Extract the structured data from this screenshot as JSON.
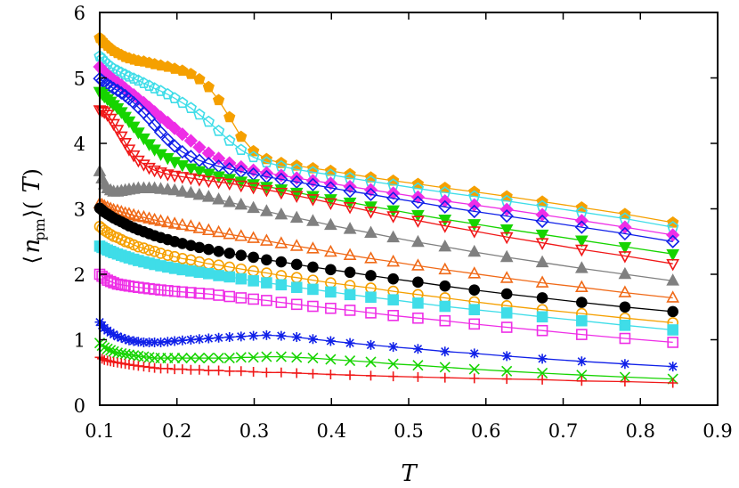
{
  "chart_data": {
    "type": "line",
    "title": "",
    "xlabel": "T",
    "ylabel": "⟨n_pm⟩(T)",
    "xlim": [
      0.1,
      0.9
    ],
    "ylim": [
      0,
      6
    ],
    "xticks": [
      "0.1",
      "0.2",
      "0.3",
      "0.4",
      "0.5",
      "0.6",
      "0.7",
      "0.8",
      "0.9"
    ],
    "yticks": [
      "0",
      "1",
      "2",
      "3",
      "4",
      "5",
      "6"
    ],
    "grid": false,
    "legend": "none",
    "x": [
      0.1,
      0.103,
      0.106,
      0.11,
      0.114,
      0.118,
      0.123,
      0.128,
      0.133,
      0.138,
      0.144,
      0.15,
      0.157,
      0.164,
      0.171,
      0.179,
      0.188,
      0.197,
      0.207,
      0.218,
      0.229,
      0.241,
      0.254,
      0.268,
      0.283,
      0.299,
      0.316,
      0.335,
      0.355,
      0.376,
      0.399,
      0.424,
      0.451,
      0.48,
      0.512,
      0.547,
      0.585,
      0.627,
      0.673,
      0.724,
      0.78,
      0.842
    ],
    "series": [
      {
        "marker": "filled-pentagon",
        "color": "#f5a000",
        "values": [
          5.61,
          5.57,
          5.53,
          5.49,
          5.45,
          5.41,
          5.38,
          5.35,
          5.32,
          5.3,
          5.28,
          5.26,
          5.25,
          5.23,
          5.21,
          5.19,
          5.17,
          5.14,
          5.11,
          5.06,
          4.98,
          4.86,
          4.66,
          4.4,
          4.1,
          3.88,
          3.76,
          3.7,
          3.66,
          3.62,
          3.58,
          3.53,
          3.48,
          3.43,
          3.38,
          3.32,
          3.26,
          3.19,
          3.11,
          3.02,
          2.92,
          2.79
        ]
      },
      {
        "marker": "open-pentagon",
        "color": "#3fdde8",
        "values": [
          5.33,
          5.29,
          5.25,
          5.21,
          5.17,
          5.14,
          5.11,
          5.08,
          5.05,
          5.02,
          4.99,
          4.96,
          4.92,
          4.88,
          4.84,
          4.8,
          4.75,
          4.69,
          4.62,
          4.54,
          4.44,
          4.33,
          4.19,
          4.04,
          3.9,
          3.79,
          3.71,
          3.65,
          3.6,
          3.56,
          3.52,
          3.47,
          3.42,
          3.37,
          3.31,
          3.25,
          3.19,
          3.12,
          3.04,
          2.95,
          2.85,
          2.72
        ]
      },
      {
        "marker": "filled-diamond",
        "color": "#ee2ee6",
        "values": [
          5.17,
          5.13,
          5.09,
          5.05,
          5.01,
          4.97,
          4.93,
          4.89,
          4.84,
          4.79,
          4.74,
          4.68,
          4.62,
          4.55,
          4.48,
          4.4,
          4.32,
          4.23,
          4.14,
          4.04,
          3.94,
          3.85,
          3.77,
          3.7,
          3.64,
          3.59,
          3.55,
          3.51,
          3.47,
          3.43,
          3.39,
          3.34,
          3.29,
          3.24,
          3.18,
          3.12,
          3.06,
          2.99,
          2.91,
          2.82,
          2.72,
          2.6
        ]
      },
      {
        "marker": "open-diamond",
        "color": "#1020e8",
        "values": [
          4.99,
          4.96,
          4.93,
          4.9,
          4.87,
          4.84,
          4.81,
          4.77,
          4.73,
          4.68,
          4.62,
          4.55,
          4.47,
          4.38,
          4.28,
          4.17,
          4.06,
          3.96,
          3.87,
          3.8,
          3.74,
          3.69,
          3.65,
          3.61,
          3.57,
          3.53,
          3.49,
          3.45,
          3.41,
          3.37,
          3.32,
          3.27,
          3.22,
          3.16,
          3.1,
          3.03,
          2.96,
          2.89,
          2.81,
          2.72,
          2.62,
          2.5
        ]
      },
      {
        "marker": "filled-triangle-down",
        "color": "#16d400",
        "values": [
          4.79,
          4.76,
          4.72,
          4.68,
          4.64,
          4.59,
          4.54,
          4.48,
          4.41,
          4.34,
          4.26,
          4.17,
          4.08,
          3.99,
          3.91,
          3.84,
          3.78,
          3.72,
          3.67,
          3.62,
          3.58,
          3.54,
          3.5,
          3.46,
          3.42,
          3.38,
          3.34,
          3.3,
          3.25,
          3.2,
          3.15,
          3.1,
          3.04,
          2.98,
          2.91,
          2.84,
          2.77,
          2.69,
          2.61,
          2.52,
          2.42,
          2.31
        ]
      },
      {
        "marker": "open-triangle-down",
        "color": "#f01818",
        "values": [
          4.51,
          4.5,
          4.48,
          4.44,
          4.38,
          4.3,
          4.21,
          4.11,
          4.01,
          3.91,
          3.82,
          3.74,
          3.68,
          3.63,
          3.59,
          3.56,
          3.53,
          3.51,
          3.49,
          3.47,
          3.45,
          3.43,
          3.41,
          3.39,
          3.36,
          3.33,
          3.29,
          3.25,
          3.2,
          3.15,
          3.09,
          3.03,
          2.96,
          2.89,
          2.82,
          2.74,
          2.66,
          2.57,
          2.48,
          2.38,
          2.28,
          2.16
        ]
      },
      {
        "marker": "filled-triangle-up",
        "color": "#808080",
        "values": [
          3.57,
          3.46,
          3.37,
          3.31,
          3.28,
          3.26,
          3.26,
          3.27,
          3.28,
          3.29,
          3.3,
          3.31,
          3.31,
          3.31,
          3.31,
          3.3,
          3.29,
          3.28,
          3.26,
          3.24,
          3.21,
          3.18,
          3.14,
          3.1,
          3.06,
          3.01,
          2.96,
          2.91,
          2.86,
          2.81,
          2.75,
          2.69,
          2.63,
          2.56,
          2.49,
          2.42,
          2.34,
          2.26,
          2.18,
          2.09,
          2.0,
          1.9
        ]
      },
      {
        "marker": "open-triangle-up",
        "color": "#f06a18",
        "values": [
          3.08,
          3.06,
          3.04,
          3.02,
          3.0,
          2.98,
          2.97,
          2.95,
          2.93,
          2.92,
          2.9,
          2.88,
          2.87,
          2.85,
          2.83,
          2.81,
          2.79,
          2.77,
          2.75,
          2.73,
          2.7,
          2.67,
          2.64,
          2.61,
          2.58,
          2.55,
          2.51,
          2.47,
          2.43,
          2.39,
          2.34,
          2.29,
          2.24,
          2.19,
          2.13,
          2.07,
          2.01,
          1.94,
          1.87,
          1.8,
          1.72,
          1.64
        ]
      },
      {
        "marker": "filled-circle",
        "color": "#000000",
        "values": [
          3.01,
          2.98,
          2.95,
          2.92,
          2.89,
          2.86,
          2.83,
          2.8,
          2.77,
          2.74,
          2.71,
          2.68,
          2.65,
          2.62,
          2.59,
          2.56,
          2.53,
          2.5,
          2.47,
          2.44,
          2.41,
          2.38,
          2.35,
          2.32,
          2.29,
          2.26,
          2.22,
          2.19,
          2.15,
          2.11,
          2.07,
          2.03,
          1.98,
          1.93,
          1.88,
          1.82,
          1.76,
          1.7,
          1.64,
          1.57,
          1.5,
          1.43
        ]
      },
      {
        "marker": "open-circle",
        "color": "#f5a000",
        "values": [
          2.73,
          2.7,
          2.67,
          2.64,
          2.61,
          2.58,
          2.56,
          2.53,
          2.5,
          2.48,
          2.45,
          2.42,
          2.4,
          2.37,
          2.35,
          2.32,
          2.29,
          2.27,
          2.24,
          2.22,
          2.19,
          2.16,
          2.14,
          2.11,
          2.08,
          2.05,
          2.02,
          1.98,
          1.95,
          1.91,
          1.87,
          1.83,
          1.79,
          1.74,
          1.69,
          1.64,
          1.58,
          1.52,
          1.46,
          1.4,
          1.33,
          1.26
        ]
      },
      {
        "marker": "filled-square",
        "color": "#3fdde8",
        "values": [
          2.43,
          2.41,
          2.39,
          2.37,
          2.35,
          2.33,
          2.31,
          2.29,
          2.27,
          2.25,
          2.23,
          2.21,
          2.19,
          2.17,
          2.15,
          2.13,
          2.11,
          2.09,
          2.07,
          2.05,
          2.03,
          2.01,
          1.98,
          1.96,
          1.93,
          1.9,
          1.87,
          1.84,
          1.8,
          1.77,
          1.73,
          1.69,
          1.65,
          1.61,
          1.56,
          1.51,
          1.46,
          1.41,
          1.35,
          1.29,
          1.22,
          1.15
        ]
      },
      {
        "marker": "open-square",
        "color": "#ee2ee6",
        "values": [
          2.0,
          1.97,
          1.94,
          1.91,
          1.89,
          1.87,
          1.85,
          1.84,
          1.83,
          1.82,
          1.81,
          1.8,
          1.79,
          1.78,
          1.77,
          1.76,
          1.75,
          1.74,
          1.73,
          1.72,
          1.71,
          1.7,
          1.68,
          1.66,
          1.64,
          1.62,
          1.6,
          1.57,
          1.54,
          1.51,
          1.48,
          1.45,
          1.41,
          1.37,
          1.33,
          1.29,
          1.24,
          1.19,
          1.14,
          1.08,
          1.02,
          0.96
        ]
      },
      {
        "marker": "star",
        "color": "#1020e8",
        "values": [
          1.27,
          1.22,
          1.18,
          1.14,
          1.11,
          1.08,
          1.05,
          1.03,
          1.01,
          0.99,
          0.98,
          0.97,
          0.96,
          0.96,
          0.96,
          0.96,
          0.97,
          0.98,
          0.99,
          1.0,
          1.01,
          1.02,
          1.03,
          1.04,
          1.05,
          1.06,
          1.07,
          1.06,
          1.04,
          1.01,
          0.98,
          0.95,
          0.92,
          0.89,
          0.86,
          0.82,
          0.79,
          0.75,
          0.71,
          0.67,
          0.63,
          0.59
        ]
      },
      {
        "marker": "cross",
        "color": "#16d400",
        "values": [
          0.95,
          0.91,
          0.88,
          0.86,
          0.84,
          0.82,
          0.8,
          0.79,
          0.78,
          0.77,
          0.76,
          0.75,
          0.74,
          0.73,
          0.72,
          0.72,
          0.72,
          0.72,
          0.72,
          0.72,
          0.72,
          0.72,
          0.72,
          0.72,
          0.73,
          0.73,
          0.74,
          0.74,
          0.73,
          0.72,
          0.7,
          0.68,
          0.66,
          0.63,
          0.61,
          0.58,
          0.55,
          0.52,
          0.49,
          0.46,
          0.43,
          0.4
        ]
      },
      {
        "marker": "plus",
        "color": "#f01818",
        "values": [
          0.73,
          0.71,
          0.69,
          0.68,
          0.67,
          0.66,
          0.65,
          0.64,
          0.63,
          0.62,
          0.61,
          0.6,
          0.59,
          0.58,
          0.57,
          0.56,
          0.56,
          0.55,
          0.55,
          0.54,
          0.54,
          0.53,
          0.53,
          0.52,
          0.52,
          0.51,
          0.5,
          0.5,
          0.49,
          0.48,
          0.47,
          0.46,
          0.45,
          0.44,
          0.43,
          0.42,
          0.41,
          0.4,
          0.39,
          0.37,
          0.36,
          0.34
        ]
      }
    ]
  }
}
